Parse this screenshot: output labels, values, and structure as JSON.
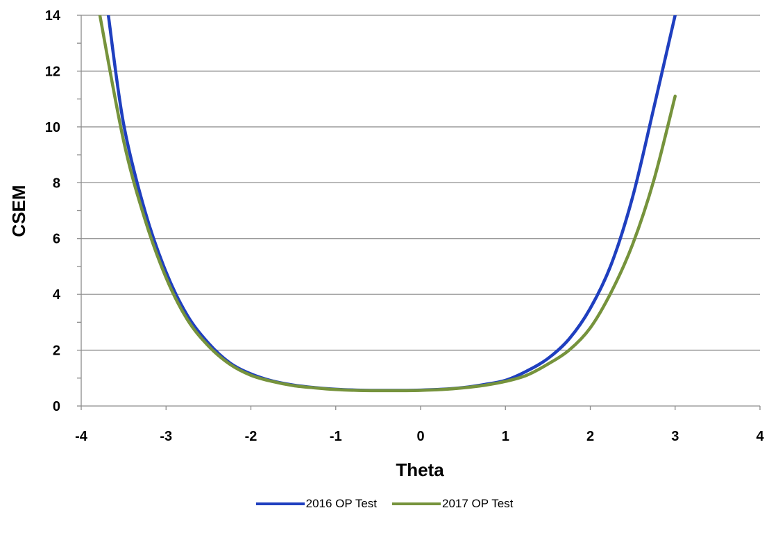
{
  "chart_data": {
    "type": "line",
    "xlabel": "Theta",
    "ylabel": "CSEM",
    "xlim": [
      -4,
      4
    ],
    "ylim": [
      0,
      14
    ],
    "xticks": [
      "-4",
      "-3",
      "-2",
      "-1",
      "0",
      "1",
      "2",
      "3",
      "4"
    ],
    "yticks": [
      "0",
      "2",
      "4",
      "6",
      "8",
      "10",
      "12",
      "14"
    ],
    "grid": "horizontal",
    "legend_position": "bottom",
    "series": [
      {
        "name": "2016 OP Test",
        "color": "#1f3fbf",
        "x": [
          -3.68,
          -3.5,
          -3.25,
          -3.0,
          -2.75,
          -2.5,
          -2.25,
          -2.0,
          -1.75,
          -1.5,
          -1.25,
          -1.0,
          -0.75,
          -0.5,
          -0.25,
          0.0,
          0.25,
          0.5,
          0.75,
          1.0,
          1.25,
          1.5,
          1.75,
          2.0,
          2.25,
          2.5,
          2.75,
          3.0
        ],
        "y": [
          14.0,
          10.1,
          7.0,
          4.8,
          3.25,
          2.25,
          1.55,
          1.15,
          0.9,
          0.75,
          0.66,
          0.6,
          0.57,
          0.56,
          0.56,
          0.57,
          0.6,
          0.66,
          0.77,
          0.92,
          1.25,
          1.7,
          2.4,
          3.5,
          5.1,
          7.5,
          10.7,
          14.0
        ]
      },
      {
        "name": "2017 OP Test",
        "color": "#76933c",
        "x": [
          -3.78,
          -3.5,
          -3.25,
          -3.0,
          -2.75,
          -2.5,
          -2.25,
          -2.0,
          -1.75,
          -1.5,
          -1.25,
          -1.0,
          -0.75,
          -0.5,
          -0.25,
          0.0,
          0.25,
          0.5,
          0.75,
          1.0,
          1.25,
          1.5,
          1.75,
          2.0,
          2.25,
          2.5,
          2.75,
          3.0
        ],
        "y": [
          14.0,
          9.5,
          6.7,
          4.6,
          3.1,
          2.15,
          1.5,
          1.1,
          0.88,
          0.73,
          0.65,
          0.59,
          0.56,
          0.55,
          0.55,
          0.56,
          0.59,
          0.65,
          0.74,
          0.88,
          1.1,
          1.5,
          2.0,
          2.8,
          4.1,
          5.8,
          8.1,
          11.1
        ]
      }
    ]
  }
}
